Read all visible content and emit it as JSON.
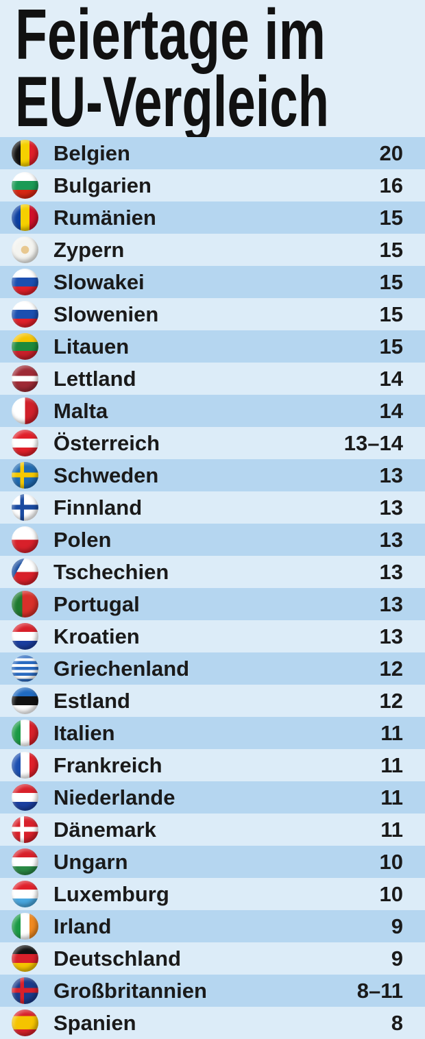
{
  "title": [
    "Feiertage im",
    "EU-Vergleich"
  ],
  "table": {
    "rows": [
      [
        "Belgien",
        20
      ],
      [
        "Bulgarien",
        16
      ],
      [
        "Rumänien",
        15
      ],
      [
        "Zypern",
        15
      ],
      [
        "Slowakei",
        15
      ],
      [
        "Slowenien",
        15
      ],
      [
        "Litauen",
        15
      ],
      [
        "Lettland",
        14
      ],
      [
        "Malta",
        14
      ],
      [
        "Österreich",
        "13–14"
      ],
      [
        "Schweden",
        13
      ],
      [
        "Finnland",
        13
      ],
      [
        "Polen",
        13
      ],
      [
        "Tschechien",
        13
      ],
      [
        "Portugal",
        13
      ],
      [
        "Kroatien",
        13
      ],
      [
        "Griechenland",
        12
      ],
      [
        "Estland",
        12
      ],
      [
        "Italien",
        11
      ],
      [
        "Frankreich",
        11
      ],
      [
        "Niederlande",
        11
      ],
      [
        "Dänemark",
        11
      ],
      [
        "Ungarn",
        10
      ],
      [
        "Luxemburg",
        10
      ],
      [
        "Irland",
        9
      ],
      [
        "Deutschland",
        9
      ],
      [
        "Großbritannien",
        "8–11"
      ],
      [
        "Spanien",
        8
      ]
    ]
  }
}
